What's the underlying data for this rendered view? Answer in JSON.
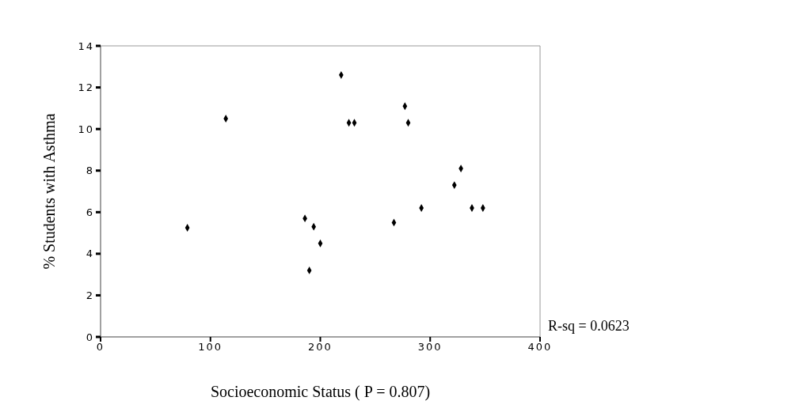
{
  "chart_data": {
    "type": "scatter",
    "xlabel": "Socioeconomic Status    ( P = 0.807)",
    "ylabel": "% Students with Asthma",
    "x": [
      79,
      114,
      186,
      190,
      194,
      200,
      219,
      226,
      231,
      277,
      280,
      267,
      292,
      322,
      328,
      338,
      348
    ],
    "series": [
      {
        "color": "#000000",
        "values": [
          5.25,
          10.5,
          5.7,
          3.2,
          5.3,
          4.5,
          12.6,
          10.3,
          10.3,
          11.1,
          10.3,
          5.5,
          6.2,
          7.3,
          8.1,
          6.2,
          6.2
        ]
      }
    ],
    "xlim": [
      0,
      400
    ],
    "xticks": [
      0,
      100,
      200,
      300,
      400
    ],
    "ylim": [
      0,
      14
    ],
    "yticks": [
      0,
      2,
      4,
      6,
      8,
      10,
      12,
      14
    ],
    "grid": false,
    "marker": "diamond",
    "annotations": [
      "R-sq = 0.0623"
    ]
  }
}
